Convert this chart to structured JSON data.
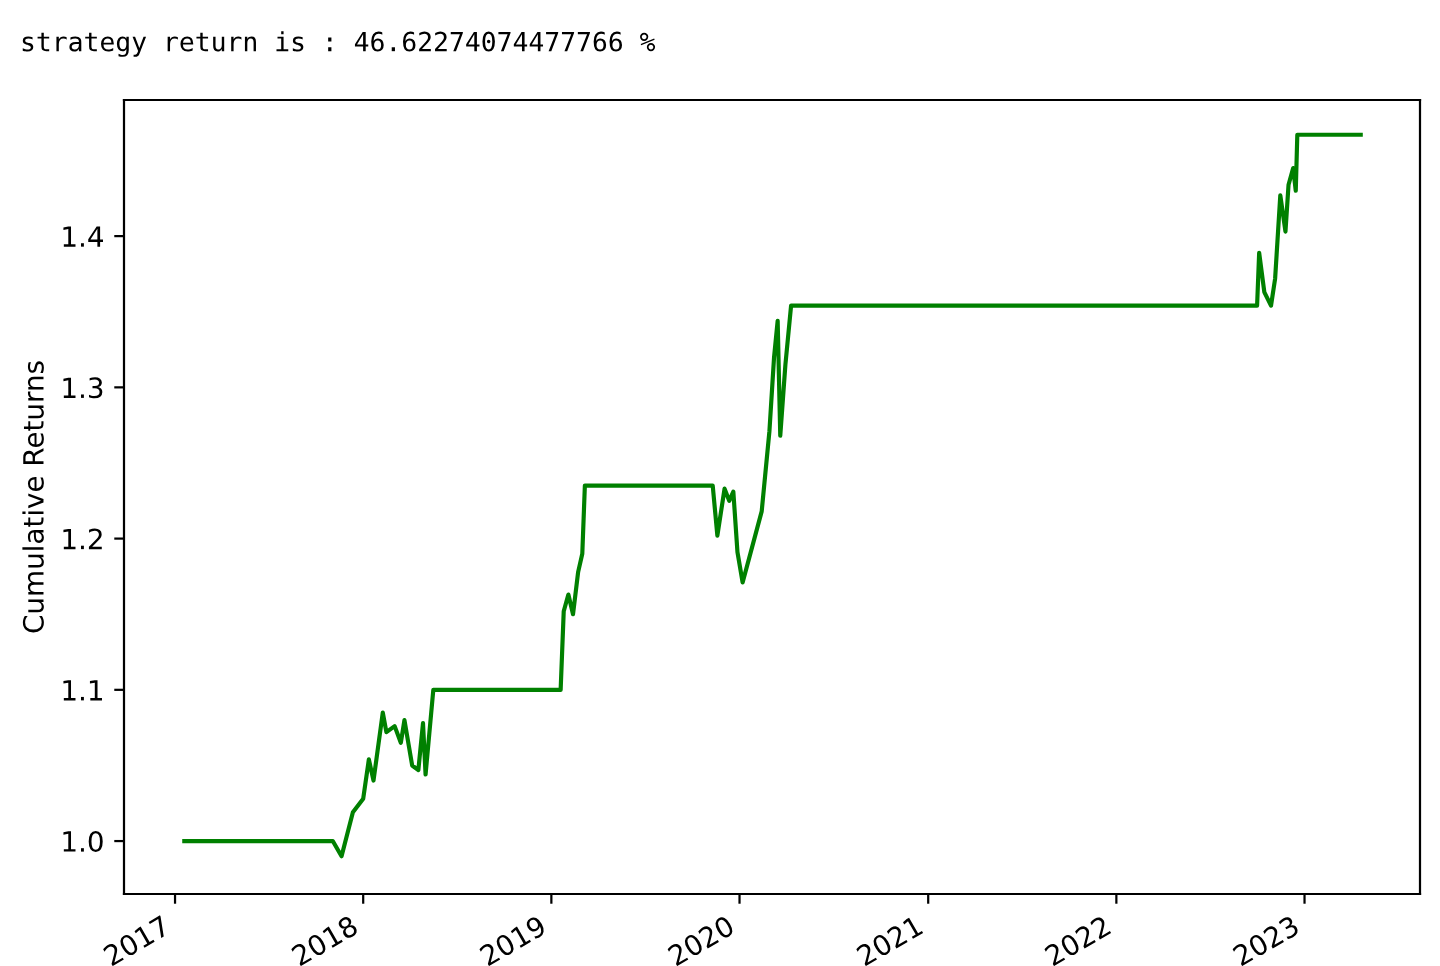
{
  "chart_data": {
    "type": "line",
    "title": "strategy return is : 46.62274074477766 %",
    "ylabel": "Cumulative Returns",
    "x": [
      "2017-01-19",
      "2017-11-03",
      "2017-11-20",
      "2017-12-12",
      "2018-01-01",
      "2018-01-12",
      "2018-01-21",
      "2018-02-08",
      "2018-02-15",
      "2018-03-03",
      "2018-03-15",
      "2018-03-22",
      "2018-04-06",
      "2018-04-18",
      "2018-04-27",
      "2018-05-02",
      "2018-05-17",
      "2019-01-19",
      "2019-01-25",
      "2019-02-03",
      "2019-02-12",
      "2019-02-22",
      "2019-03-02",
      "2019-03-07",
      "2019-11-10",
      "2019-11-19",
      "2019-12-03",
      "2019-12-12",
      "2019-12-20",
      "2019-12-28",
      "2020-01-07",
      "2020-02-13",
      "2020-02-28",
      "2020-03-08",
      "2020-03-15",
      "2020-03-20",
      "2020-03-30",
      "2020-04-10",
      "2022-10-01",
      "2022-10-05",
      "2022-10-15",
      "2022-10-28",
      "2022-11-05",
      "2022-11-15",
      "2022-11-25",
      "2022-12-01",
      "2022-12-10",
      "2022-12-15",
      "2022-12-18",
      "2023-04-20"
    ],
    "series": [
      {
        "color": "#008000",
        "values": [
          1.0,
          1.0,
          0.99,
          1.019,
          1.028,
          1.054,
          1.04,
          1.085,
          1.072,
          1.076,
          1.065,
          1.08,
          1.05,
          1.047,
          1.078,
          1.044,
          1.1,
          1.1,
          1.152,
          1.163,
          1.15,
          1.178,
          1.19,
          1.235,
          1.235,
          1.202,
          1.233,
          1.225,
          1.231,
          1.191,
          1.171,
          1.218,
          1.271,
          1.32,
          1.344,
          1.268,
          1.315,
          1.354,
          1.354,
          1.389,
          1.363,
          1.354,
          1.372,
          1.427,
          1.403,
          1.434,
          1.445,
          1.43,
          1.467,
          1.467
        ]
      }
    ],
    "xlim": [
      "2016-09-24",
      "2023-08-13"
    ],
    "xticks": [
      {
        "value": "2017-01-01",
        "label": "2017"
      },
      {
        "value": "2018-01-01",
        "label": "2018"
      },
      {
        "value": "2019-01-01",
        "label": "2019"
      },
      {
        "value": "2020-01-01",
        "label": "2020"
      },
      {
        "value": "2021-01-01",
        "label": "2021"
      },
      {
        "value": "2022-01-01",
        "label": "2022"
      },
      {
        "value": "2023-01-01",
        "label": "2023"
      }
    ],
    "ylim": [
      0.965,
      1.49
    ],
    "yticks": [
      {
        "value": 1,
        "label": "1.0"
      },
      1.1,
      1.2,
      1.3,
      1.4
    ],
    "grid": false,
    "legend": false
  }
}
